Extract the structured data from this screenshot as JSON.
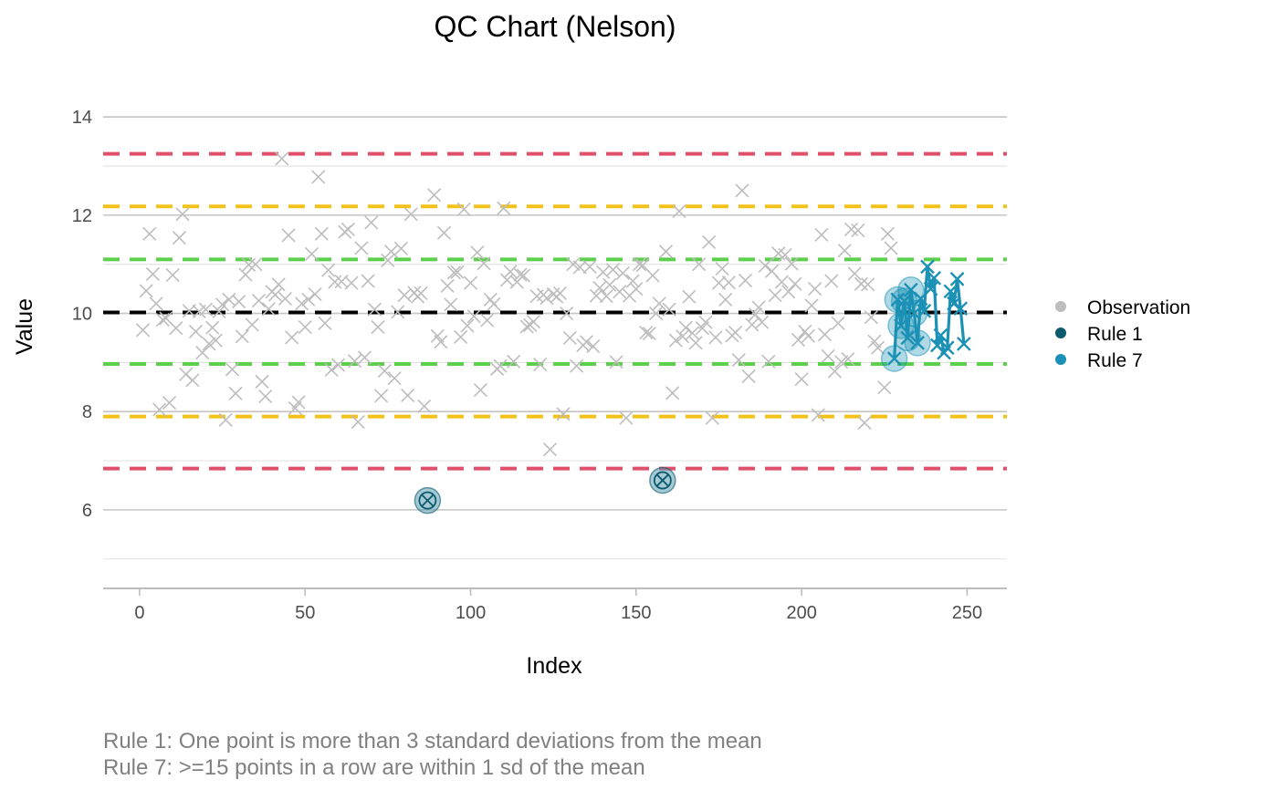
{
  "chart_data": {
    "type": "scatter",
    "title": "QC Chart (Nelson)",
    "xlabel": "Index",
    "ylabel": "Value",
    "xlim": [
      -11,
      262
    ],
    "ylim": [
      4.4,
      14.45
    ],
    "x_ticks": [
      0,
      50,
      100,
      150,
      200,
      250
    ],
    "y_ticks": [
      6,
      8,
      10,
      12,
      14
    ],
    "grid": true,
    "legend_position": "right",
    "legend": [
      {
        "label": "Observation",
        "color": "#bdbdbd"
      },
      {
        "label": "Rule 1",
        "color": "#0b5a6e"
      },
      {
        "label": "Rule 7",
        "color": "#1b91b5"
      }
    ],
    "reference_lines": [
      {
        "name": "mean",
        "y": 10.02,
        "color": "#000000"
      },
      {
        "name": "+1 sd",
        "y": 11.1,
        "color": "#5ccf4c"
      },
      {
        "name": "-1 sd",
        "y": 8.97,
        "color": "#5ccf4c"
      },
      {
        "name": "+2 sd",
        "y": 12.18,
        "color": "#f2c21b"
      },
      {
        "name": "-2 sd",
        "y": 7.9,
        "color": "#f2c21b"
      },
      {
        "name": "+3 sd",
        "y": 13.25,
        "color": "#e0506a"
      },
      {
        "name": "-3 sd",
        "y": 6.84,
        "color": "#e0506a"
      }
    ],
    "observations": [
      [
        1,
        9.66
      ],
      [
        2,
        10.46
      ],
      [
        3,
        11.62
      ],
      [
        4,
        10.8
      ],
      [
        5,
        10.2
      ],
      [
        6,
        8.04
      ],
      [
        7,
        9.87
      ],
      [
        8,
        9.9
      ],
      [
        9,
        8.18
      ],
      [
        10,
        10.78
      ],
      [
        11,
        9.7
      ],
      [
        12,
        11.54
      ],
      [
        13,
        12.02
      ],
      [
        14,
        8.76
      ],
      [
        15,
        10.05
      ],
      [
        16,
        8.64
      ],
      [
        17,
        9.63
      ],
      [
        18,
        10.04
      ],
      [
        19,
        9.2
      ],
      [
        20,
        10.08
      ],
      [
        21,
        9.38
      ],
      [
        22,
        9.71
      ],
      [
        23,
        9.45
      ],
      [
        24,
        10.04
      ],
      [
        25,
        10.18
      ],
      [
        26,
        7.83
      ],
      [
        27,
        10.28
      ],
      [
        28,
        8.86
      ],
      [
        29,
        8.37
      ],
      [
        30,
        10.24
      ],
      [
        31,
        9.53
      ],
      [
        32,
        10.79
      ],
      [
        33,
        10.99
      ],
      [
        34,
        9.77
      ],
      [
        35,
        11.0
      ],
      [
        36,
        10.26
      ],
      [
        37,
        8.61
      ],
      [
        38,
        8.31
      ],
      [
        39,
        10.09
      ],
      [
        40,
        10.44
      ],
      [
        41,
        10.38
      ],
      [
        42,
        10.59
      ],
      [
        43,
        13.15
      ],
      [
        44,
        10.3
      ],
      [
        45,
        11.59
      ],
      [
        46,
        9.51
      ],
      [
        47,
        8.07
      ],
      [
        48,
        8.19
      ],
      [
        49,
        10.2
      ],
      [
        50,
        9.72
      ],
      [
        51,
        10.28
      ],
      [
        52,
        11.21
      ],
      [
        53,
        10.39
      ],
      [
        54,
        12.78
      ],
      [
        55,
        11.62
      ],
      [
        56,
        9.8
      ],
      [
        57,
        10.88
      ],
      [
        58,
        8.85
      ],
      [
        59,
        10.64
      ],
      [
        60,
        8.95
      ],
      [
        61,
        10.65
      ],
      [
        62,
        11.66
      ],
      [
        63,
        11.71
      ],
      [
        64,
        10.62
      ],
      [
        65,
        9.03
      ],
      [
        66,
        7.79
      ],
      [
        67,
        11.33
      ],
      [
        68,
        9.1
      ],
      [
        69,
        10.66
      ],
      [
        70,
        11.85
      ],
      [
        71,
        10.08
      ],
      [
        72,
        9.72
      ],
      [
        73,
        8.32
      ],
      [
        74,
        8.83
      ],
      [
        75,
        11.08
      ],
      [
        76,
        11.26
      ],
      [
        77,
        8.68
      ],
      [
        78,
        10.03
      ],
      [
        79,
        11.32
      ],
      [
        80,
        10.37
      ],
      [
        81,
        8.33
      ],
      [
        82,
        12.02
      ],
      [
        83,
        10.42
      ],
      [
        84,
        10.34
      ],
      [
        85,
        10.41
      ],
      [
        86,
        8.11
      ],
      [
        89,
        12.41
      ],
      [
        90,
        9.54
      ],
      [
        91,
        9.42
      ],
      [
        92,
        11.64
      ],
      [
        93,
        10.56
      ],
      [
        94,
        10.18
      ],
      [
        95,
        10.83
      ],
      [
        96,
        10.84
      ],
      [
        97,
        9.52
      ],
      [
        98,
        12.12
      ],
      [
        99,
        9.75
      ],
      [
        100,
        10.62
      ],
      [
        101,
        9.94
      ],
      [
        102,
        11.24
      ],
      [
        103,
        8.44
      ],
      [
        104,
        11.02
      ],
      [
        105,
        9.86
      ],
      [
        106,
        10.28
      ],
      [
        107,
        10.19
      ],
      [
        108,
        8.87
      ],
      [
        109,
        8.93
      ],
      [
        110,
        12.14
      ],
      [
        111,
        10.68
      ],
      [
        112,
        10.85
      ],
      [
        113,
        9.02
      ],
      [
        114,
        10.64
      ],
      [
        115,
        10.79
      ],
      [
        116,
        10.77
      ],
      [
        117,
        9.73
      ],
      [
        118,
        9.76
      ],
      [
        119,
        9.83
      ],
      [
        120,
        10.35
      ],
      [
        121,
        8.96
      ],
      [
        122,
        10.38
      ],
      [
        123,
        10.31
      ],
      [
        124,
        7.23
      ],
      [
        125,
        10.39
      ],
      [
        126,
        10.34
      ],
      [
        127,
        10.41
      ],
      [
        128,
        7.95
      ],
      [
        129,
        10.0
      ],
      [
        130,
        9.5
      ],
      [
        131,
        11.0
      ],
      [
        132,
        8.93
      ],
      [
        133,
        10.94
      ],
      [
        134,
        9.35
      ],
      [
        135,
        9.42
      ],
      [
        136,
        10.95
      ],
      [
        137,
        9.33
      ],
      [
        138,
        10.36
      ],
      [
        139,
        10.52
      ],
      [
        140,
        10.84
      ],
      [
        141,
        10.35
      ],
      [
        142,
        10.58
      ],
      [
        143,
        10.89
      ],
      [
        144,
        9.01
      ],
      [
        145,
        10.44
      ],
      [
        146,
        10.82
      ],
      [
        147,
        7.87
      ],
      [
        148,
        10.36
      ],
      [
        149,
        10.66
      ],
      [
        150,
        10.5
      ],
      [
        151,
        11.0
      ],
      [
        152,
        10.98
      ],
      [
        153,
        9.61
      ],
      [
        154,
        9.59
      ],
      [
        155,
        10.77
      ],
      [
        156,
        10.0
      ],
      [
        157,
        10.2
      ],
      [
        159,
        11.26
      ],
      [
        160,
        10.08
      ],
      [
        161,
        8.38
      ],
      [
        162,
        9.45
      ],
      [
        163,
        12.08
      ],
      [
        164,
        9.53
      ],
      [
        165,
        9.71
      ],
      [
        166,
        10.34
      ],
      [
        167,
        9.6
      ],
      [
        168,
        9.4
      ],
      [
        169,
        11.0
      ],
      [
        170,
        9.7
      ],
      [
        171,
        9.82
      ],
      [
        172,
        11.45
      ],
      [
        173,
        7.87
      ],
      [
        174,
        9.51
      ],
      [
        175,
        10.62
      ],
      [
        176,
        10.91
      ],
      [
        177,
        10.28
      ],
      [
        178,
        10.63
      ],
      [
        179,
        9.55
      ],
      [
        180,
        9.61
      ],
      [
        181,
        9.05
      ],
      [
        182,
        12.5
      ],
      [
        183,
        10.67
      ],
      [
        184,
        8.72
      ],
      [
        185,
        9.77
      ],
      [
        186,
        9.98
      ],
      [
        187,
        10.12
      ],
      [
        188,
        9.82
      ],
      [
        189,
        10.97
      ],
      [
        190,
        9.02
      ],
      [
        191,
        10.86
      ],
      [
        192,
        10.37
      ],
      [
        193,
        11.22
      ],
      [
        194,
        10.64
      ],
      [
        195,
        11.19
      ],
      [
        196,
        10.44
      ],
      [
        197,
        11.01
      ],
      [
        198,
        10.6
      ],
      [
        199,
        9.46
      ],
      [
        200,
        8.66
      ],
      [
        201,
        9.63
      ],
      [
        202,
        9.54
      ],
      [
        203,
        10.16
      ],
      [
        204,
        10.5
      ],
      [
        205,
        7.93
      ],
      [
        206,
        11.6
      ],
      [
        207,
        9.57
      ],
      [
        208,
        9.13
      ],
      [
        209,
        10.66
      ],
      [
        210,
        8.82
      ],
      [
        211,
        9.8
      ],
      [
        212,
        9.01
      ],
      [
        213,
        11.28
      ],
      [
        214,
        9.07
      ],
      [
        215,
        11.71
      ],
      [
        216,
        10.81
      ],
      [
        217,
        11.69
      ],
      [
        218,
        10.6
      ],
      [
        219,
        7.77
      ],
      [
        220,
        10.59
      ],
      [
        221,
        9.92
      ],
      [
        222,
        9.43
      ],
      [
        223,
        9.3
      ],
      [
        225,
        8.49
      ],
      [
        226,
        11.62
      ],
      [
        227,
        11.33
      ]
    ],
    "rule1_points": [
      [
        87,
        6.19
      ],
      [
        158,
        6.6
      ]
    ],
    "rule7_points": [
      [
        228,
        9.08
      ],
      [
        229,
        10.28
      ],
      [
        230,
        9.75
      ],
      [
        231,
        10.25
      ],
      [
        232,
        9.5
      ],
      [
        233,
        10.48
      ],
      [
        234,
        10.0
      ],
      [
        235,
        9.4
      ],
      [
        236,
        10.3
      ],
      [
        237,
        10.05
      ],
      [
        238,
        10.95
      ],
      [
        239,
        10.5
      ],
      [
        240,
        10.72
      ],
      [
        241,
        9.35
      ],
      [
        242,
        9.55
      ],
      [
        243,
        9.2
      ],
      [
        244,
        9.3
      ],
      [
        245,
        10.45
      ],
      [
        246,
        10.2
      ],
      [
        247,
        10.7
      ],
      [
        248,
        10.1
      ],
      [
        249,
        9.38
      ]
    ],
    "rule7_circled_count": 8,
    "captions": [
      "Rule 1: One point is more than 3 standard deviations from the mean",
      "Rule 7: >=15 points in a row are within 1 sd of the mean"
    ]
  }
}
